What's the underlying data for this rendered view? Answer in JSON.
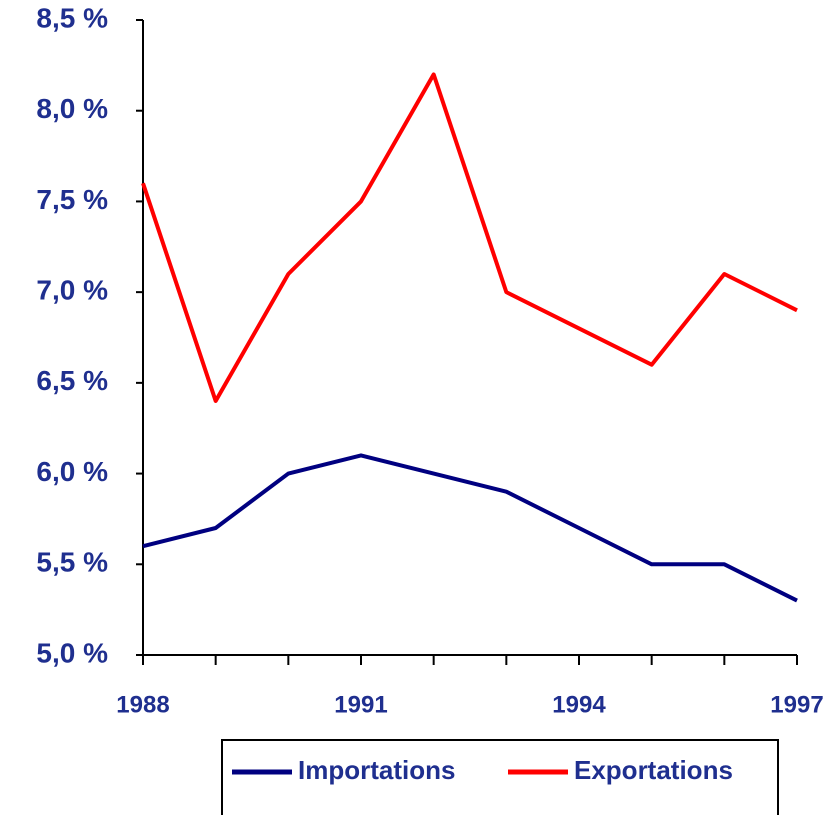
{
  "chart_data": {
    "type": "line",
    "categories": [
      "1988",
      null,
      null,
      "1991",
      null,
      null,
      "1994",
      null,
      null,
      "1997"
    ],
    "series": [
      {
        "name": "Importations",
        "color": "#000080",
        "values": [
          5.6,
          5.7,
          6.0,
          6.1,
          6.0,
          5.9,
          5.7,
          5.5,
          5.5,
          5.3
        ]
      },
      {
        "name": "Exportations",
        "color": "#ff0000",
        "values": [
          7.6,
          6.4,
          7.1,
          7.5,
          8.2,
          7.0,
          6.8,
          6.6,
          7.1,
          6.9
        ]
      }
    ],
    "ylim": [
      5.0,
      8.5
    ],
    "yticks": [
      {
        "value": 5.0,
        "label": "5,0 %"
      },
      {
        "value": 5.5,
        "label": "5,5 %"
      },
      {
        "value": 6.0,
        "label": "6,0 %"
      },
      {
        "value": 6.5,
        "label": "6,5 %"
      },
      {
        "value": 7.0,
        "label": "7,0 %"
      },
      {
        "value": 7.5,
        "label": "7,5 %"
      },
      {
        "value": 8.0,
        "label": "8,0 %"
      },
      {
        "value": 8.5,
        "label": "8,5 %"
      }
    ],
    "legend": "bottom"
  }
}
